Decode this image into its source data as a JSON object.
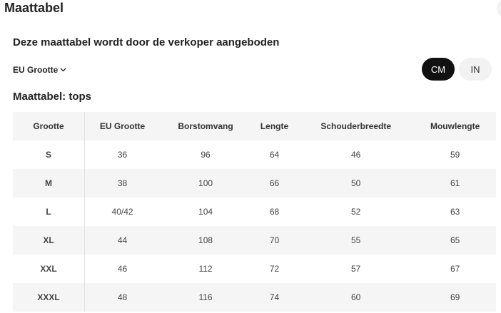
{
  "header": {
    "title": "Maattabel"
  },
  "subtitle": "Deze maattabel wordt door de verkoper aangeboden",
  "size_dropdown": "EU Grootte",
  "unit_buttons": [
    "CM",
    "IN"
  ],
  "table": {
    "title": "Maattabel: tops",
    "columns": [
      "Grootte",
      "EU Grootte",
      "Borstomvang",
      "Lengte",
      "Schouderbreedte",
      "Mouwlengte"
    ],
    "rows": [
      [
        "S",
        "36",
        "96",
        "64",
        "46",
        "59"
      ],
      [
        "M",
        "38",
        "100",
        "66",
        "50",
        "61"
      ],
      [
        "L",
        "40/42",
        "104",
        "68",
        "52",
        "63"
      ],
      [
        "XL",
        "44",
        "108",
        "70",
        "55",
        "65"
      ],
      [
        "XXL",
        "46",
        "112",
        "72",
        "57",
        "67"
      ],
      [
        "XXXL",
        "48",
        "116",
        "74",
        "60",
        "69"
      ]
    ]
  }
}
